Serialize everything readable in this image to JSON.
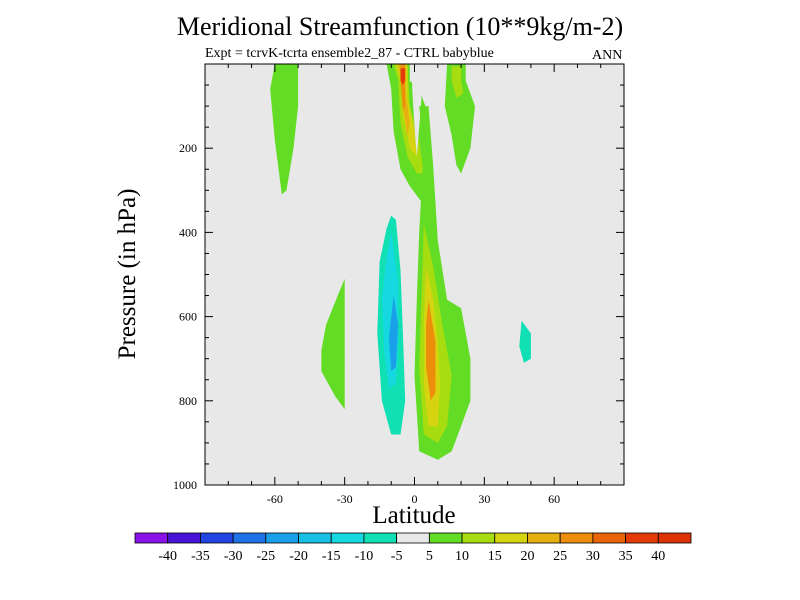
{
  "chart_data": {
    "type": "contour",
    "title": "Meridional Streamfunction (10**9kg/m-2)",
    "subtitle": "Expt = tcrvK-tcrta ensemble2_87 - CTRL babyblue",
    "season": "ANN",
    "xlabel": "Latitude",
    "ylabel": "Pressure (in hPa)",
    "xlim": [
      -90,
      90
    ],
    "ylim": [
      1000,
      0
    ],
    "x_ticks": [
      -60,
      -30,
      0,
      30,
      60
    ],
    "x_tick_labels": [
      "-60",
      "-30",
      "0",
      "30",
      "60"
    ],
    "y_ticks": [
      200,
      400,
      600,
      800,
      1000
    ],
    "y_tick_labels": [
      "200",
      "400",
      "600",
      "800",
      "1000"
    ],
    "colorbar": {
      "levels": [
        -40,
        -35,
        -30,
        -25,
        -20,
        -15,
        -10,
        -5,
        5,
        10,
        15,
        20,
        25,
        30,
        35,
        40
      ],
      "labels": [
        "-40",
        "-35",
        "-30",
        "-25",
        "-20",
        "-15",
        "-10",
        "-5",
        "5",
        "10",
        "15",
        "20",
        "25",
        "30",
        "35",
        "40"
      ],
      "colors": [
        "#8a14e8",
        "#4a14d8",
        "#2244e0",
        "#1f73e6",
        "#1aa0e8",
        "#18c0e6",
        "#16d8e0",
        "#10e0b4",
        "#e8e8e8",
        "#62dc24",
        "#a6dc10",
        "#d6d410",
        "#e6b010",
        "#ec8e0c",
        "#ec640a",
        "#e43c08",
        "#dc3408"
      ]
    },
    "contours": [
      {
        "name": "nh-subpolar-positive",
        "level": 5,
        "points": [
          [
            -60,
            0
          ],
          [
            -50,
            0
          ],
          [
            -50,
            100
          ],
          [
            -52,
            200
          ],
          [
            -55,
            300
          ],
          [
            -57,
            310
          ],
          [
            -60,
            180
          ],
          [
            -62,
            60
          ]
        ]
      },
      {
        "name": "sh-midlat-negative-upper",
        "level": -5,
        "points": [
          [
            -26,
            5
          ],
          [
            -20,
            5
          ],
          [
            -20,
            100
          ],
          [
            -21,
            160
          ],
          [
            -24,
            165
          ],
          [
            -26,
            100
          ]
        ]
      },
      {
        "name": "small-negative-patch",
        "level": -5,
        "points": [
          [
            -22,
            370
          ],
          [
            -20,
            380
          ],
          [
            -20,
            470
          ],
          [
            -22,
            480
          ],
          [
            -23,
            430
          ]
        ]
      },
      {
        "name": "nh-midlat-positive-patch",
        "level": 5,
        "points": [
          [
            -40,
            680
          ],
          [
            -38,
            620
          ],
          [
            -33,
            550
          ],
          [
            -30,
            510
          ],
          [
            -30,
            820
          ],
          [
            -34,
            790
          ],
          [
            -40,
            730
          ]
        ]
      },
      {
        "name": "upper-positive-plume-outer",
        "level": 5,
        "points": [
          [
            -12,
            0
          ],
          [
            -2,
            0
          ],
          [
            -2,
            40
          ],
          [
            2,
            60
          ],
          [
            6,
            120
          ],
          [
            7,
            220
          ],
          [
            6,
            300
          ],
          [
            5,
            340
          ],
          [
            2,
            320
          ],
          [
            -2,
            290
          ],
          [
            -6,
            250
          ],
          [
            -9,
            160
          ],
          [
            -10,
            60
          ]
        ]
      },
      {
        "name": "upper-positive-plume-band2",
        "level": 10,
        "points": [
          [
            -9,
            0
          ],
          [
            -3,
            0
          ],
          [
            -2,
            100
          ],
          [
            2,
            180
          ],
          [
            4,
            260
          ],
          [
            1,
            260
          ],
          [
            -3,
            220
          ],
          [
            -6,
            140
          ],
          [
            -7,
            40
          ]
        ]
      },
      {
        "name": "upper-positive-plume-band3",
        "level": 15,
        "points": [
          [
            -8,
            0
          ],
          [
            -3,
            0
          ],
          [
            -3,
            80
          ],
          [
            0,
            160
          ],
          [
            1,
            220
          ],
          [
            -2,
            200
          ],
          [
            -5,
            120
          ],
          [
            -6,
            40
          ]
        ]
      },
      {
        "name": "upper-positive-plume-band4",
        "level": 20,
        "points": [
          [
            -7,
            0
          ],
          [
            -4,
            0
          ],
          [
            -4,
            60
          ],
          [
            -2,
            140
          ],
          [
            -3,
            170
          ],
          [
            -5,
            100
          ],
          [
            -6,
            30
          ]
        ]
      },
      {
        "name": "upper-positive-plume-band5",
        "level": 25,
        "points": [
          [
            -6,
            0
          ],
          [
            -4,
            0
          ],
          [
            -4,
            40
          ],
          [
            -4,
            100
          ],
          [
            -5,
            110
          ],
          [
            -6,
            40
          ]
        ]
      },
      {
        "name": "upper-positive-plume-core",
        "level": 35,
        "points": [
          [
            -6,
            10
          ],
          [
            -4,
            10
          ],
          [
            -4,
            40
          ],
          [
            -5,
            50
          ],
          [
            -6,
            40
          ]
        ]
      },
      {
        "name": "upper-negative-notch",
        "level": -5,
        "points": [
          [
            -1,
            0
          ],
          [
            3,
            0
          ],
          [
            3,
            80
          ],
          [
            2,
            150
          ],
          [
            1,
            220
          ],
          [
            0,
            150
          ],
          [
            -1,
            60
          ]
        ]
      },
      {
        "name": "sh-upper-positive",
        "level": 5,
        "points": [
          [
            14,
            0
          ],
          [
            22,
            0
          ],
          [
            22,
            40
          ],
          [
            26,
            100
          ],
          [
            24,
            200
          ],
          [
            20,
            260
          ],
          [
            18,
            240
          ],
          [
            16,
            170
          ],
          [
            13,
            100
          ]
        ]
      },
      {
        "name": "sh-upper-positive-band2",
        "level": 10,
        "points": [
          [
            16,
            5
          ],
          [
            20,
            5
          ],
          [
            20,
            40
          ],
          [
            21,
            70
          ],
          [
            18,
            80
          ],
          [
            16,
            40
          ]
        ]
      },
      {
        "name": "nh-hadley-negative",
        "level": -5,
        "points": [
          [
            -8,
            340
          ],
          [
            -6,
            410
          ],
          [
            -4,
            560
          ],
          [
            -2,
            740
          ],
          [
            -2,
            890
          ],
          [
            -6,
            920
          ],
          [
            -8,
            940
          ],
          [
            -12,
            920
          ],
          [
            -16,
            860
          ],
          [
            -18,
            780
          ],
          [
            -18,
            600
          ],
          [
            -16,
            430
          ],
          [
            -14,
            340
          ],
          [
            -11,
            300
          ]
        ]
      },
      {
        "name": "nh-hadley-negative-band2",
        "level": -10,
        "points": [
          [
            -8,
            370
          ],
          [
            -6,
            490
          ],
          [
            -5,
            640
          ],
          [
            -4,
            800
          ],
          [
            -6,
            880
          ],
          [
            -10,
            880
          ],
          [
            -14,
            800
          ],
          [
            -16,
            640
          ],
          [
            -15,
            470
          ],
          [
            -12,
            390
          ],
          [
            -10,
            360
          ]
        ]
      },
      {
        "name": "nh-hadley-negative-band3",
        "level": -15,
        "points": [
          [
            -10,
            400
          ],
          [
            -7,
            520
          ],
          [
            -7,
            660
          ],
          [
            -8,
            760
          ],
          [
            -11,
            770
          ],
          [
            -13,
            680
          ],
          [
            -14,
            560
          ],
          [
            -12,
            460
          ]
        ]
      },
      {
        "name": "nh-hadley-negative-core",
        "level": -25,
        "points": [
          [
            -9,
            550
          ],
          [
            -7,
            620
          ],
          [
            -8,
            720
          ],
          [
            -10,
            730
          ],
          [
            -11,
            650
          ]
        ]
      },
      {
        "name": "sh-hadley-positive",
        "level": 5,
        "points": [
          [
            2,
            100
          ],
          [
            6,
            100
          ],
          [
            8,
            240
          ],
          [
            10,
            420
          ],
          [
            14,
            560
          ],
          [
            20,
            580
          ],
          [
            24,
            700
          ],
          [
            24,
            800
          ],
          [
            20,
            860
          ],
          [
            16,
            920
          ],
          [
            10,
            940
          ],
          [
            6,
            930
          ],
          [
            2,
            920
          ],
          [
            0,
            740
          ],
          [
            1,
            560
          ],
          [
            2,
            400
          ],
          [
            3,
            300
          ],
          [
            4,
            200
          ]
        ]
      },
      {
        "name": "sh-hadley-positive-band2",
        "level": 10,
        "points": [
          [
            4,
            380
          ],
          [
            8,
            480
          ],
          [
            12,
            620
          ],
          [
            16,
            740
          ],
          [
            14,
            860
          ],
          [
            10,
            900
          ],
          [
            4,
            880
          ],
          [
            2,
            720
          ],
          [
            3,
            560
          ]
        ]
      },
      {
        "name": "sh-hadley-positive-band3",
        "level": 15,
        "points": [
          [
            5,
            480
          ],
          [
            8,
            560
          ],
          [
            10,
            660
          ],
          [
            11,
            760
          ],
          [
            10,
            860
          ],
          [
            6,
            860
          ],
          [
            4,
            760
          ],
          [
            4,
            620
          ]
        ]
      },
      {
        "name": "sh-hadley-positive-core",
        "level": 25,
        "points": [
          [
            6,
            560
          ],
          [
            9,
            660
          ],
          [
            9,
            780
          ],
          [
            7,
            800
          ],
          [
            5,
            720
          ],
          [
            5,
            620
          ]
        ]
      },
      {
        "name": "sh-ferrel-negative",
        "level": -5,
        "points": [
          [
            46,
            300
          ],
          [
            52,
            280
          ],
          [
            60,
            300
          ],
          [
            62,
            420
          ],
          [
            62,
            600
          ],
          [
            60,
            760
          ],
          [
            54,
            850
          ],
          [
            48,
            860
          ],
          [
            40,
            740
          ],
          [
            36,
            560
          ],
          [
            38,
            400
          ],
          [
            42,
            320
          ]
        ]
      },
      {
        "name": "sh-ferrel-negative-core",
        "level": -10,
        "points": [
          [
            46,
            610
          ],
          [
            50,
            640
          ],
          [
            50,
            700
          ],
          [
            47,
            710
          ],
          [
            45,
            670
          ]
        ]
      }
    ]
  }
}
